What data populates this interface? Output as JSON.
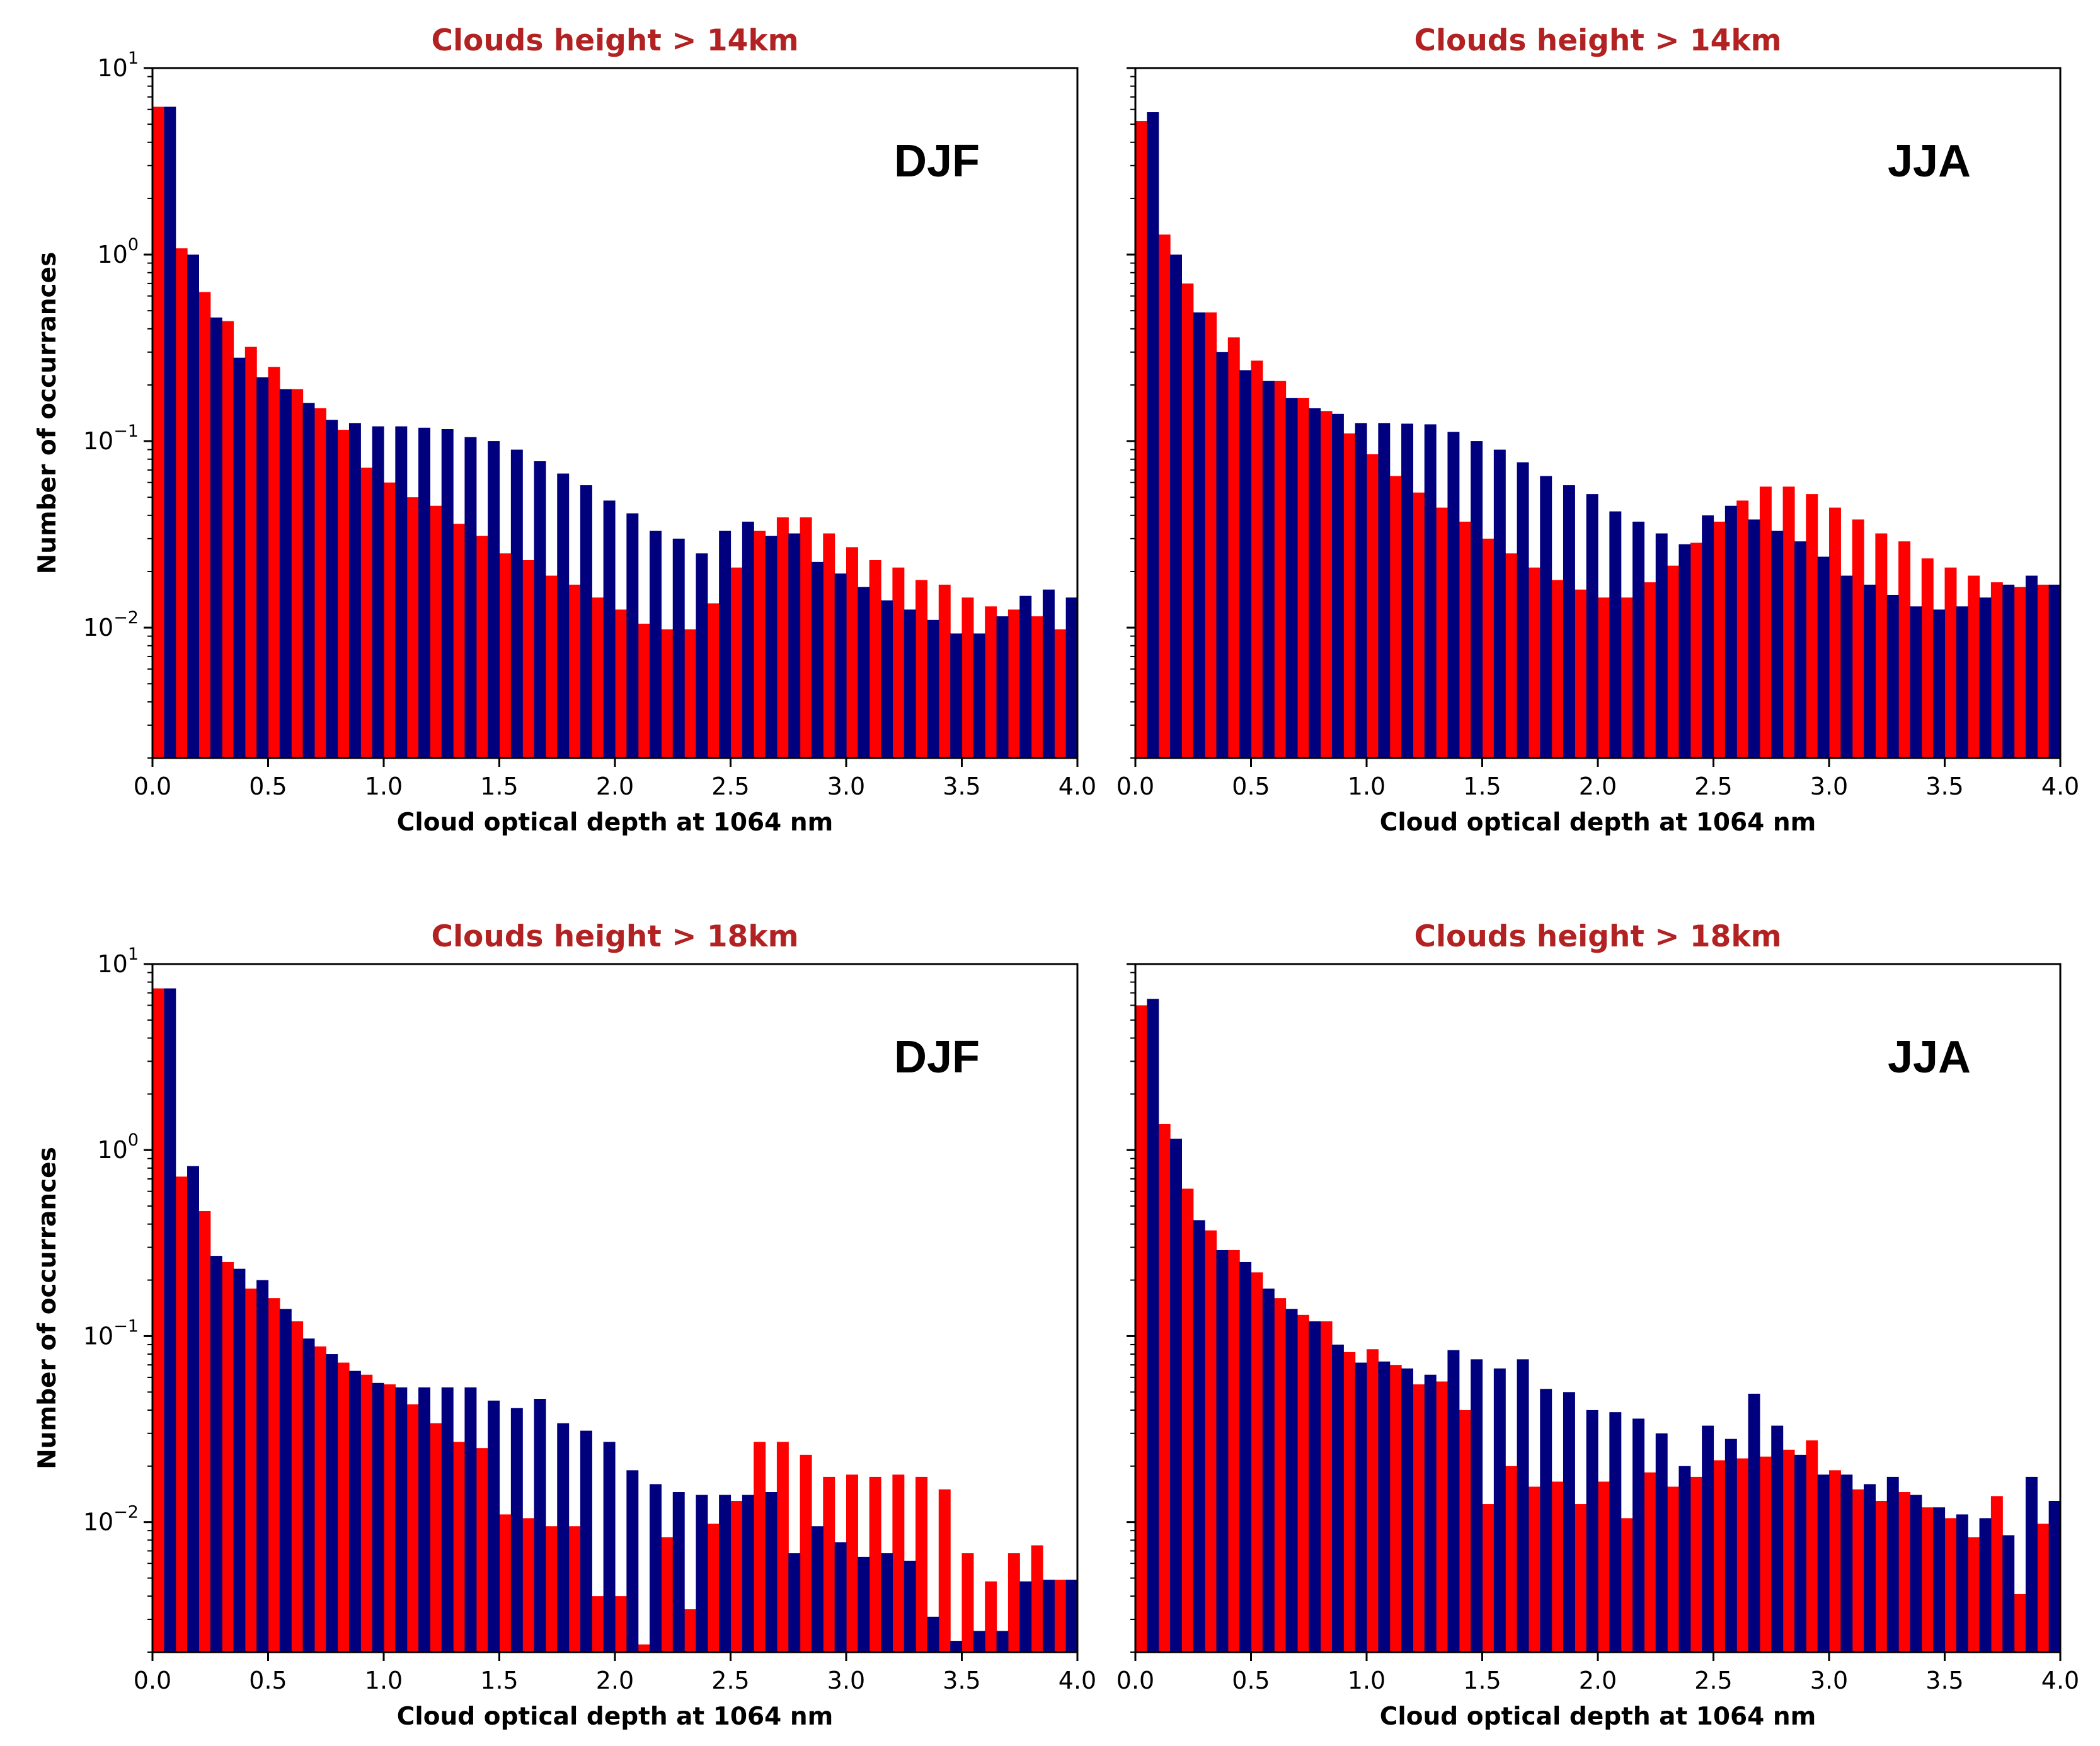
{
  "colors": {
    "red": "#ff0000",
    "blue": "#00007f",
    "title": "#b22222"
  },
  "chart_data": [
    {
      "type": "bar",
      "title": "Clouds height > 14km",
      "season": "DJF",
      "xlabel": "Cloud optical depth at 1064 nm",
      "ylabel": "Number of occurrances",
      "xlim": [
        0,
        4
      ],
      "ylim": [
        0.002,
        10
      ],
      "yscale": "log",
      "xticks": [
        "0.0",
        "0.5",
        "1.0",
        "1.5",
        "2.0",
        "2.5",
        "3.0",
        "3.5",
        "4.0"
      ],
      "yticks": [
        {
          "base": "10",
          "exp": "1"
        },
        {
          "base": "10",
          "exp": "0"
        },
        {
          "base": "10",
          "exp": "−1"
        },
        {
          "base": "10",
          "exp": "−2"
        }
      ],
      "bin_width": 0.1,
      "series": [
        {
          "name": "red",
          "values": [
            6.2,
            1.08,
            0.63,
            0.44,
            0.32,
            0.25,
            0.19,
            0.15,
            0.115,
            0.072,
            0.06,
            0.05,
            0.045,
            0.036,
            0.031,
            0.025,
            0.023,
            0.019,
            0.017,
            0.0145,
            0.0125,
            0.0105,
            0.0098,
            0.0098,
            0.0135,
            0.021,
            0.033,
            0.039,
            0.039,
            0.032,
            0.027,
            0.023,
            0.021,
            0.018,
            0.017,
            0.0145,
            0.013,
            0.0125,
            0.0115,
            0.0098
          ]
        },
        {
          "name": "blue",
          "values": [
            6.2,
            1.0,
            0.46,
            0.28,
            0.22,
            0.19,
            0.16,
            0.13,
            0.125,
            0.12,
            0.12,
            0.118,
            0.116,
            0.105,
            0.1,
            0.09,
            0.078,
            0.067,
            0.058,
            0.048,
            0.041,
            0.033,
            0.03,
            0.025,
            0.033,
            0.037,
            0.031,
            0.032,
            0.0225,
            0.0195,
            0.0165,
            0.014,
            0.0125,
            0.011,
            0.0093,
            0.0093,
            0.0115,
            0.0148,
            0.016,
            0.0145
          ]
        }
      ]
    },
    {
      "type": "bar",
      "title": "Clouds height > 14km",
      "season": "JJA",
      "xlabel": "Cloud optical depth at 1064 nm",
      "ylabel": "",
      "xlim": [
        0,
        4
      ],
      "ylim": [
        0.002,
        10
      ],
      "yscale": "log",
      "xticks": [
        "0.0",
        "0.5",
        "1.0",
        "1.5",
        "2.0",
        "2.5",
        "3.0",
        "3.5",
        "4.0"
      ],
      "yticks": [],
      "bin_width": 0.1,
      "series": [
        {
          "name": "red",
          "values": [
            5.2,
            1.28,
            0.7,
            0.49,
            0.36,
            0.27,
            0.21,
            0.17,
            0.145,
            0.11,
            0.085,
            0.065,
            0.053,
            0.044,
            0.037,
            0.03,
            0.025,
            0.021,
            0.018,
            0.016,
            0.0145,
            0.0145,
            0.0175,
            0.0215,
            0.0285,
            0.037,
            0.048,
            0.057,
            0.057,
            0.052,
            0.044,
            0.038,
            0.032,
            0.029,
            0.0235,
            0.021,
            0.019,
            0.0175,
            0.0165,
            0.017
          ]
        },
        {
          "name": "blue",
          "values": [
            5.8,
            1.0,
            0.49,
            0.3,
            0.24,
            0.21,
            0.17,
            0.15,
            0.14,
            0.125,
            0.125,
            0.124,
            0.123,
            0.112,
            0.1,
            0.09,
            0.077,
            0.065,
            0.058,
            0.052,
            0.042,
            0.037,
            0.032,
            0.028,
            0.04,
            0.045,
            0.038,
            0.033,
            0.029,
            0.024,
            0.019,
            0.017,
            0.015,
            0.013,
            0.0125,
            0.013,
            0.0145,
            0.017,
            0.019,
            0.017
          ]
        }
      ]
    },
    {
      "type": "bar",
      "title": "Clouds height > 18km",
      "season": "DJF",
      "xlabel": "Cloud optical depth at 1064 nm",
      "ylabel": "Number of occurrances",
      "xlim": [
        0,
        4
      ],
      "ylim": [
        0.002,
        10
      ],
      "yscale": "log",
      "xticks": [
        "0.0",
        "0.5",
        "1.0",
        "1.5",
        "2.0",
        "2.5",
        "3.0",
        "3.5",
        "4.0"
      ],
      "yticks": [
        {
          "base": "10",
          "exp": "1"
        },
        {
          "base": "10",
          "exp": "0"
        },
        {
          "base": "10",
          "exp": "−1"
        },
        {
          "base": "10",
          "exp": "−2"
        }
      ],
      "bin_width": 0.1,
      "series": [
        {
          "name": "red",
          "values": [
            7.4,
            0.72,
            0.47,
            0.25,
            0.18,
            0.16,
            0.12,
            0.088,
            0.072,
            0.062,
            0.055,
            0.043,
            0.034,
            0.027,
            0.025,
            0.011,
            0.0105,
            0.0095,
            0.0095,
            0.004,
            0.004,
            0.0022,
            0.0083,
            0.0034,
            0.0098,
            0.013,
            0.027,
            0.027,
            0.023,
            0.0175,
            0.018,
            0.0175,
            0.018,
            0.0175,
            0.015,
            0.0068,
            0.0048,
            0.0068,
            0.0075,
            0.0049
          ]
        },
        {
          "name": "blue",
          "values": [
            7.4,
            0.82,
            0.27,
            0.23,
            0.2,
            0.14,
            0.097,
            0.08,
            0.065,
            0.056,
            0.053,
            0.053,
            0.053,
            0.053,
            0.045,
            0.041,
            0.046,
            0.034,
            0.031,
            0.027,
            0.019,
            0.016,
            0.0145,
            0.014,
            0.014,
            0.014,
            0.0145,
            0.0068,
            0.0095,
            0.0078,
            0.0065,
            0.0068,
            0.0062,
            0.0031,
            0.0023,
            0.0026,
            0.0026,
            0.0048,
            0.0049,
            0.0049
          ]
        }
      ]
    },
    {
      "type": "bar",
      "title": "Clouds height > 18km",
      "season": "JJA",
      "xlabel": "Cloud optical depth at 1064 nm",
      "ylabel": "",
      "xlim": [
        0,
        4
      ],
      "ylim": [
        0.002,
        10
      ],
      "yscale": "log",
      "xticks": [
        "0.0",
        "0.5",
        "1.0",
        "1.5",
        "2.0",
        "2.5",
        "3.0",
        "3.5",
        "4.0"
      ],
      "yticks": [],
      "bin_width": 0.1,
      "series": [
        {
          "name": "red",
          "values": [
            6.0,
            1.38,
            0.62,
            0.37,
            0.29,
            0.22,
            0.16,
            0.13,
            0.12,
            0.082,
            0.085,
            0.07,
            0.055,
            0.057,
            0.04,
            0.0125,
            0.02,
            0.0155,
            0.0165,
            0.0125,
            0.0165,
            0.0105,
            0.0185,
            0.0155,
            0.0175,
            0.0215,
            0.022,
            0.0225,
            0.0245,
            0.0275,
            0.019,
            0.015,
            0.013,
            0.0145,
            0.012,
            0.0105,
            0.0083,
            0.0138,
            0.0041,
            0.0098
          ]
        },
        {
          "name": "blue",
          "values": [
            6.5,
            1.15,
            0.42,
            0.29,
            0.25,
            0.18,
            0.14,
            0.12,
            0.09,
            0.072,
            0.073,
            0.067,
            0.062,
            0.084,
            0.075,
            0.067,
            0.075,
            0.052,
            0.05,
            0.04,
            0.039,
            0.036,
            0.03,
            0.02,
            0.033,
            0.028,
            0.049,
            0.033,
            0.023,
            0.018,
            0.018,
            0.016,
            0.0175,
            0.014,
            0.012,
            0.011,
            0.0105,
            0.0085,
            0.0175,
            0.013
          ]
        }
      ]
    }
  ]
}
